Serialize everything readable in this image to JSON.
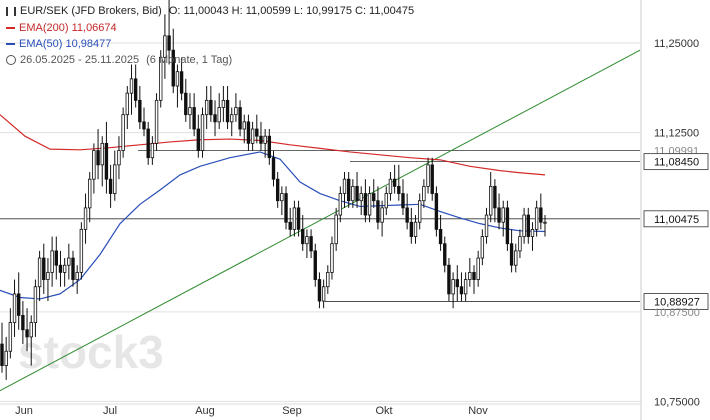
{
  "header": {
    "instrument": "EUR/SEK (JFD Brokers, Bid)",
    "ohlc": "O: 11,00043   H: 11,00599   L: 10,99175   C: 11,00475",
    "ema200_label": "EMA(200)",
    "ema200_value": "11,06674",
    "ema50_label": "EMA(50)",
    "ema50_value": "10,98477",
    "range_label": "26.05.2025 - 25.11.2025",
    "range_note": "(6 Monate, 1 Tag)"
  },
  "watermark": "stock3",
  "colors": {
    "background": "#ffffff",
    "candle": "#111111",
    "ema200": "#d42a2a",
    "ema50": "#2a4fb8",
    "trendline": "#2e8b2e",
    "level": "#333333",
    "grid": "#e0e0e0",
    "watermark": "#e6e6e6"
  },
  "chart_data": {
    "type": "candlestick",
    "x_ticks": [
      "Jun",
      "Jul",
      "Aug",
      "Sep",
      "Okt",
      "Nov"
    ],
    "y_ticks": [
      "11,25000",
      "11,12500",
      "10,75000"
    ],
    "y_range": [
      10.745,
      11.31
    ],
    "price_labels": [
      {
        "text": "11,09991",
        "value": 11.0999,
        "boxed": false
      },
      {
        "text": "11,08450",
        "value": 11.0845,
        "boxed": true
      },
      {
        "text": "11,00475",
        "value": 11.00475,
        "boxed": true
      },
      {
        "text": "10,88927",
        "value": 10.88927,
        "boxed": true
      },
      {
        "text": "10,87500",
        "value": 10.875,
        "boxed": false
      }
    ],
    "current_price": 11.00475,
    "ohlc": [
      [
        10.83,
        10.86,
        10.79,
        10.8
      ],
      [
        10.8,
        10.84,
        10.78,
        10.82
      ],
      [
        10.82,
        10.88,
        10.81,
        10.86
      ],
      [
        10.86,
        10.92,
        10.84,
        10.9
      ],
      [
        10.9,
        10.93,
        10.85,
        10.87
      ],
      [
        10.87,
        10.89,
        10.83,
        10.85
      ],
      [
        10.85,
        10.88,
        10.82,
        10.84
      ],
      [
        10.84,
        10.87,
        10.8,
        10.86
      ],
      [
        10.86,
        10.92,
        10.84,
        10.91
      ],
      [
        10.91,
        10.96,
        10.89,
        10.95
      ],
      [
        10.95,
        10.97,
        10.9,
        10.92
      ],
      [
        10.92,
        10.95,
        10.89,
        10.93
      ],
      [
        10.93,
        10.98,
        10.91,
        10.96
      ],
      [
        10.96,
        10.98,
        10.92,
        10.94
      ],
      [
        10.94,
        10.96,
        10.91,
        10.93
      ],
      [
        10.93,
        10.95,
        10.91,
        10.94
      ],
      [
        10.94,
        10.97,
        10.92,
        10.95
      ],
      [
        10.95,
        10.96,
        10.91,
        10.92
      ],
      [
        10.92,
        10.94,
        10.9,
        10.93
      ],
      [
        10.93,
        11.0,
        10.92,
        10.99
      ],
      [
        10.99,
        11.04,
        10.97,
        11.02
      ],
      [
        11.02,
        11.07,
        11.0,
        11.06
      ],
      [
        11.06,
        11.11,
        11.04,
        11.1
      ],
      [
        11.1,
        11.13,
        11.06,
        11.08
      ],
      [
        11.08,
        11.12,
        11.05,
        11.11
      ],
      [
        11.11,
        11.14,
        11.04,
        11.06
      ],
      [
        11.06,
        11.08,
        11.02,
        11.04
      ],
      [
        11.04,
        11.1,
        11.03,
        11.08
      ],
      [
        11.08,
        11.12,
        11.06,
        11.1
      ],
      [
        11.1,
        11.16,
        11.09,
        11.15
      ],
      [
        11.15,
        11.19,
        11.13,
        11.18
      ],
      [
        11.18,
        11.22,
        11.15,
        11.2
      ],
      [
        11.2,
        11.22,
        11.16,
        11.17
      ],
      [
        11.17,
        11.19,
        11.13,
        11.14
      ],
      [
        11.14,
        11.16,
        11.12,
        11.13
      ],
      [
        11.13,
        11.14,
        11.08,
        11.09
      ],
      [
        11.09,
        11.12,
        11.08,
        11.11
      ],
      [
        11.11,
        11.18,
        11.1,
        11.17
      ],
      [
        11.17,
        11.24,
        11.16,
        11.23
      ],
      [
        11.23,
        11.29,
        11.2,
        11.26
      ],
      [
        11.26,
        11.31,
        11.22,
        11.24
      ],
      [
        11.24,
        11.27,
        11.18,
        11.19
      ],
      [
        11.19,
        11.22,
        11.16,
        11.21
      ],
      [
        11.21,
        11.23,
        11.17,
        11.18
      ],
      [
        11.18,
        11.2,
        11.14,
        11.15
      ],
      [
        11.15,
        11.18,
        11.13,
        11.16
      ],
      [
        11.16,
        11.18,
        11.12,
        11.13
      ],
      [
        11.13,
        11.15,
        11.09,
        11.1
      ],
      [
        11.1,
        11.16,
        11.09,
        11.15
      ],
      [
        11.15,
        11.19,
        11.13,
        11.17
      ],
      [
        11.17,
        11.19,
        11.14,
        11.15
      ],
      [
        11.15,
        11.17,
        11.12,
        11.14
      ],
      [
        11.14,
        11.18,
        11.13,
        11.16
      ],
      [
        11.16,
        11.19,
        11.14,
        11.17
      ],
      [
        11.17,
        11.19,
        11.13,
        11.14
      ],
      [
        11.14,
        11.16,
        11.12,
        11.15
      ],
      [
        11.15,
        11.18,
        11.14,
        11.16
      ],
      [
        11.16,
        11.17,
        11.12,
        11.13
      ],
      [
        11.13,
        11.15,
        11.11,
        11.14
      ],
      [
        11.14,
        11.15,
        11.1,
        11.11
      ],
      [
        11.11,
        11.14,
        11.1,
        11.13
      ],
      [
        11.13,
        11.15,
        11.11,
        11.12
      ],
      [
        11.12,
        11.14,
        11.1,
        11.11
      ],
      [
        11.11,
        11.13,
        11.09,
        11.12
      ],
      [
        11.12,
        11.13,
        11.08,
        11.09
      ],
      [
        11.09,
        11.1,
        11.05,
        11.06
      ],
      [
        11.06,
        11.07,
        11.02,
        11.03
      ],
      [
        11.03,
        11.05,
        11.01,
        11.04
      ],
      [
        11.04,
        11.05,
        10.99,
        11.0
      ],
      [
        11.0,
        11.02,
        10.98,
        10.99
      ],
      [
        10.99,
        11.03,
        10.98,
        11.02
      ],
      [
        11.02,
        11.03,
        10.98,
        10.99
      ],
      [
        10.99,
        11.01,
        10.96,
        10.97
      ],
      [
        10.97,
        10.99,
        10.95,
        10.98
      ],
      [
        10.98,
        10.99,
        10.95,
        10.96
      ],
      [
        10.96,
        10.97,
        10.91,
        10.92
      ],
      [
        10.92,
        10.93,
        10.88,
        10.89
      ],
      [
        10.89,
        10.92,
        10.88,
        10.91
      ],
      [
        10.91,
        10.94,
        10.9,
        10.93
      ],
      [
        10.93,
        10.98,
        10.92,
        10.97
      ],
      [
        10.97,
        11.02,
        10.96,
        11.01
      ],
      [
        11.01,
        11.05,
        11.0,
        11.04
      ],
      [
        11.04,
        11.07,
        11.02,
        11.06
      ],
      [
        11.06,
        11.07,
        11.02,
        11.03
      ],
      [
        11.03,
        11.06,
        11.02,
        11.05
      ],
      [
        11.05,
        11.07,
        11.02,
        11.03
      ],
      [
        11.03,
        11.05,
        11.01,
        11.04
      ],
      [
        11.04,
        11.06,
        11.0,
        11.01
      ],
      [
        11.01,
        11.05,
        11.0,
        11.04
      ],
      [
        11.04,
        11.06,
        11.02,
        11.03
      ],
      [
        11.03,
        11.05,
        10.99,
        11.0
      ],
      [
        11.0,
        11.03,
        10.98,
        11.02
      ],
      [
        11.02,
        11.05,
        11.01,
        11.04
      ],
      [
        11.04,
        11.07,
        11.03,
        11.06
      ],
      [
        11.06,
        11.08,
        11.04,
        11.05
      ],
      [
        11.05,
        11.08,
        11.03,
        11.04
      ],
      [
        11.04,
        11.06,
        11.01,
        11.02
      ],
      [
        11.02,
        11.04,
        10.99,
        11.0
      ],
      [
        11.0,
        11.02,
        10.97,
        10.98
      ],
      [
        10.98,
        11.01,
        10.97,
        11.0
      ],
      [
        11.0,
        11.04,
        10.99,
        11.03
      ],
      [
        11.03,
        11.06,
        11.02,
        11.05
      ],
      [
        11.05,
        11.09,
        11.04,
        11.08
      ],
      [
        11.08,
        11.09,
        11.03,
        11.04
      ],
      [
        11.04,
        11.05,
        10.98,
        10.99
      ],
      [
        10.99,
        11.01,
        10.96,
        10.97
      ],
      [
        10.97,
        10.98,
        10.93,
        10.94
      ],
      [
        10.94,
        10.95,
        10.89,
        10.9
      ],
      [
        10.9,
        10.93,
        10.88,
        10.92
      ],
      [
        10.92,
        10.94,
        10.89,
        10.91
      ],
      [
        10.91,
        10.93,
        10.89,
        10.9
      ],
      [
        10.9,
        10.93,
        10.89,
        10.92
      ],
      [
        10.92,
        10.95,
        10.91,
        10.93
      ],
      [
        10.93,
        10.94,
        10.9,
        10.92
      ],
      [
        10.92,
        10.96,
        10.91,
        10.95
      ],
      [
        10.95,
        10.99,
        10.94,
        10.98
      ],
      [
        10.98,
        11.02,
        10.97,
        11.01
      ],
      [
        11.01,
        11.07,
        11.0,
        11.05
      ],
      [
        11.05,
        11.06,
        11.0,
        11.02
      ],
      [
        11.02,
        11.04,
        10.99,
        11.0
      ],
      [
        11.0,
        11.03,
        10.98,
        11.02
      ],
      [
        11.02,
        11.03,
        10.96,
        10.97
      ],
      [
        10.97,
        10.99,
        10.93,
        10.94
      ],
      [
        10.94,
        10.97,
        10.93,
        10.96
      ],
      [
        10.96,
        10.99,
        10.95,
        10.98
      ],
      [
        10.98,
        11.02,
        10.97,
        11.01
      ],
      [
        11.01,
        11.02,
        10.97,
        10.98
      ],
      [
        10.98,
        11.0,
        10.96,
        10.99
      ],
      [
        10.99,
        11.03,
        10.98,
        11.02
      ],
      [
        11.02,
        11.04,
        10.99,
        11.0
      ],
      [
        11.0,
        11.01,
        10.98,
        11.0
      ]
    ],
    "ema200": [
      [
        0,
        11.15
      ],
      [
        25,
        11.12
      ],
      [
        50,
        11.102
      ],
      [
        80,
        11.101
      ],
      [
        110,
        11.104
      ],
      [
        140,
        11.108
      ],
      [
        170,
        11.112
      ],
      [
        200,
        11.115
      ],
      [
        230,
        11.116
      ],
      [
        260,
        11.114
      ],
      [
        290,
        11.108
      ],
      [
        320,
        11.103
      ],
      [
        350,
        11.098
      ],
      [
        380,
        11.094
      ],
      [
        410,
        11.09
      ],
      [
        440,
        11.087
      ],
      [
        470,
        11.078
      ],
      [
        500,
        11.072
      ],
      [
        520,
        11.069
      ],
      [
        545,
        11.066
      ]
    ],
    "ema50": [
      [
        0,
        10.905
      ],
      [
        20,
        10.895
      ],
      [
        40,
        10.893
      ],
      [
        60,
        10.9
      ],
      [
        80,
        10.92
      ],
      [
        100,
        10.955
      ],
      [
        120,
        10.998
      ],
      [
        140,
        11.025
      ],
      [
        160,
        11.045
      ],
      [
        180,
        11.066
      ],
      [
        200,
        11.078
      ],
      [
        230,
        11.09
      ],
      [
        260,
        11.098
      ],
      [
        280,
        11.088
      ],
      [
        300,
        11.056
      ],
      [
        320,
        11.04
      ],
      [
        340,
        11.03
      ],
      [
        360,
        11.022
      ],
      [
        380,
        11.023
      ],
      [
        400,
        11.024
      ],
      [
        420,
        11.025
      ],
      [
        440,
        11.015
      ],
      [
        460,
        11.006
      ],
      [
        480,
        10.998
      ],
      [
        500,
        10.992
      ],
      [
        520,
        10.988
      ],
      [
        545,
        10.987
      ]
    ],
    "trendline": [
      [
        0,
        10.765
      ],
      [
        640,
        11.24
      ]
    ],
    "levels": [
      {
        "value": 11.0999,
        "x_start": 138,
        "x_end": 640
      },
      {
        "value": 11.0845,
        "x_start": 350,
        "x_end": 640
      },
      {
        "value": 11.00475,
        "x_start": 0,
        "x_end": 640
      },
      {
        "value": 10.88927,
        "x_start": 325,
        "x_end": 640
      }
    ]
  }
}
